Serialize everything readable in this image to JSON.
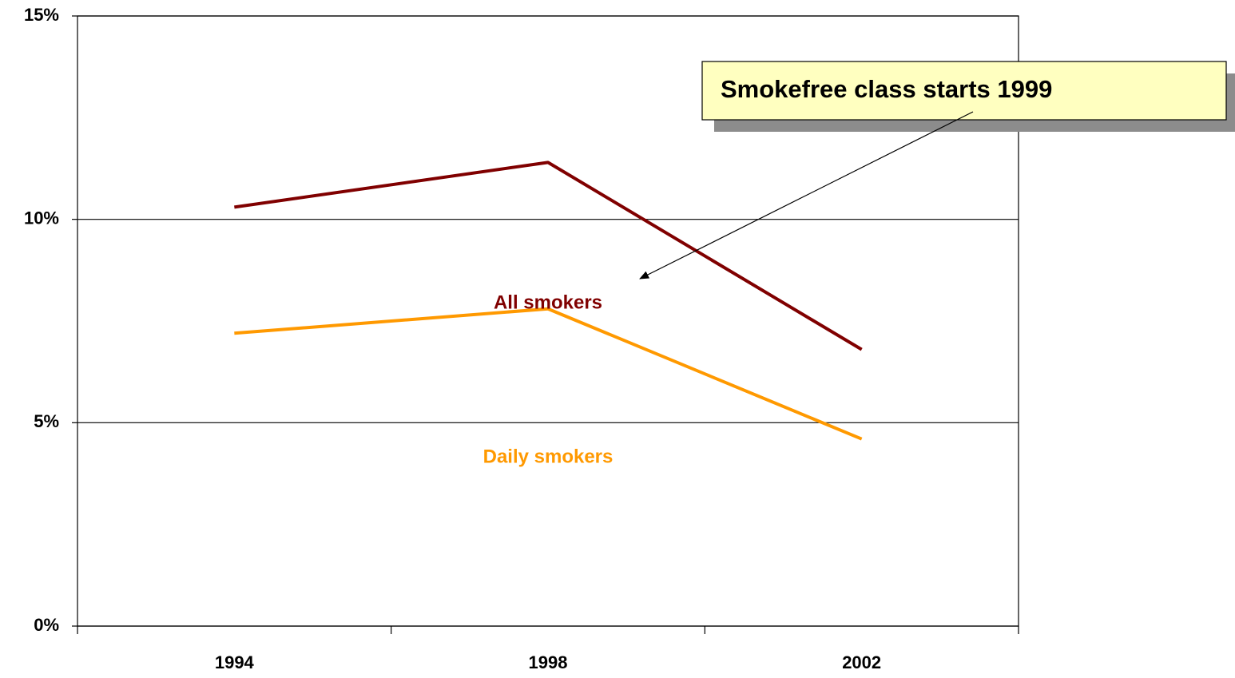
{
  "chart_data": {
    "type": "line",
    "categories": [
      "1994",
      "1998",
      "2002"
    ],
    "series": [
      {
        "name": "All smokers",
        "color": "#800000",
        "values": [
          10.3,
          11.4,
          6.8
        ]
      },
      {
        "name": "Daily smokers",
        "color": "#ff9900",
        "values": [
          7.2,
          7.8,
          4.6
        ]
      }
    ],
    "ylim": [
      0,
      15
    ],
    "yticks": [
      {
        "value": 0,
        "label": "0%"
      },
      {
        "value": 5,
        "label": "5%"
      },
      {
        "value": 10,
        "label": "10%"
      },
      {
        "value": 15,
        "label": "15%"
      }
    ],
    "grid": true,
    "annotations": [
      "Smokefree class starts 1999"
    ]
  }
}
